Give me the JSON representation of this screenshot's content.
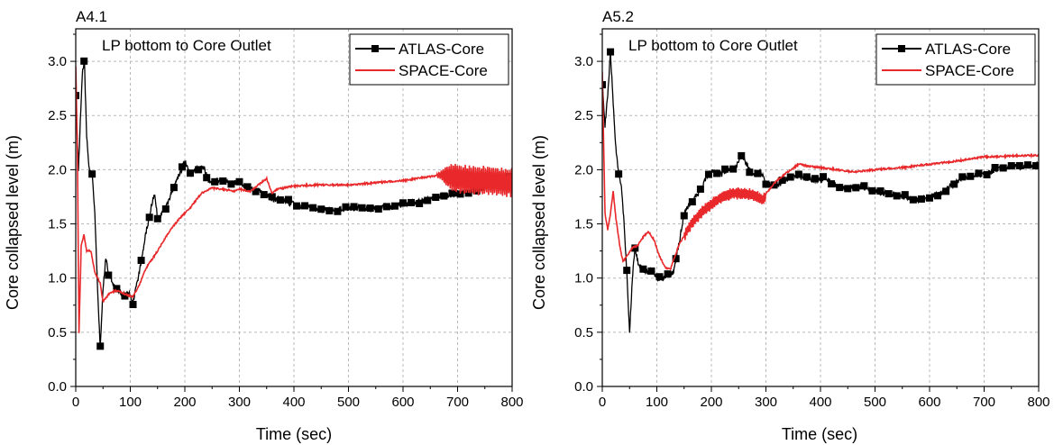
{
  "chart_data": [
    {
      "type": "line",
      "tag": "A4.1",
      "title": "LP bottom to Core Outlet",
      "xlabel": "Time (sec)",
      "ylabel": "Core collapsed level (m)",
      "xlim": [
        0,
        800
      ],
      "ylim": [
        0,
        3.3
      ],
      "x_ticks": [
        "0",
        "100",
        "200",
        "300",
        "400",
        "500",
        "600",
        "700",
        "800"
      ],
      "y_ticks": [
        "0.0",
        "0.5",
        "1.0",
        "1.5",
        "2.0",
        "2.5",
        "3.0"
      ],
      "grid": true,
      "legend_position": "top-right",
      "series": [
        {
          "name": "ATLAS-Core",
          "color": "#000000",
          "marker": "square",
          "points": [
            [
              0,
              2.7
            ],
            [
              5,
              2.0
            ],
            [
              12,
              2.9
            ],
            [
              16,
              3.0
            ],
            [
              20,
              2.3
            ],
            [
              25,
              2.0
            ],
            [
              30,
              1.95
            ],
            [
              35,
              1.6
            ],
            [
              40,
              0.9
            ],
            [
              45,
              0.35
            ],
            [
              50,
              0.9
            ],
            [
              55,
              1.2
            ],
            [
              60,
              1.05
            ],
            [
              65,
              1.0
            ],
            [
              70,
              0.92
            ],
            [
              80,
              0.87
            ],
            [
              90,
              0.85
            ],
            [
              100,
              0.85
            ],
            [
              105,
              0.78
            ],
            [
              110,
              0.9
            ],
            [
              120,
              1.15
            ],
            [
              130,
              1.45
            ],
            [
              140,
              1.7
            ],
            [
              145,
              1.78
            ],
            [
              150,
              1.55
            ],
            [
              160,
              1.6
            ],
            [
              170,
              1.7
            ],
            [
              180,
              1.85
            ],
            [
              190,
              1.95
            ],
            [
              200,
              2.08
            ],
            [
              210,
              1.95
            ],
            [
              220,
              2.0
            ],
            [
              235,
              2.02
            ],
            [
              245,
              1.88
            ],
            [
              260,
              1.9
            ],
            [
              280,
              1.88
            ],
            [
              300,
              1.88
            ],
            [
              320,
              1.82
            ],
            [
              340,
              1.8
            ],
            [
              360,
              1.73
            ],
            [
              380,
              1.72
            ],
            [
              400,
              1.68
            ],
            [
              420,
              1.66
            ],
            [
              450,
              1.63
            ],
            [
              480,
              1.63
            ],
            [
              500,
              1.64
            ],
            [
              520,
              1.65
            ],
            [
              540,
              1.63
            ],
            [
              560,
              1.66
            ],
            [
              580,
              1.65
            ],
            [
              600,
              1.68
            ],
            [
              620,
              1.7
            ],
            [
              640,
              1.71
            ],
            [
              660,
              1.75
            ],
            [
              680,
              1.76
            ],
            [
              700,
              1.78
            ],
            [
              720,
              1.8
            ],
            [
              740,
              1.82
            ],
            [
              760,
              1.85
            ],
            [
              780,
              1.9
            ],
            [
              800,
              1.95
            ]
          ]
        },
        {
          "name": "SPACE-Core",
          "color": "#e8282a",
          "points": [
            [
              0,
              2.95
            ],
            [
              3,
              2.2
            ],
            [
              6,
              0.5
            ],
            [
              10,
              1.3
            ],
            [
              15,
              1.4
            ],
            [
              20,
              1.25
            ],
            [
              28,
              1.25
            ],
            [
              35,
              1.05
            ],
            [
              45,
              0.95
            ],
            [
              50,
              0.78
            ],
            [
              60,
              0.85
            ],
            [
              70,
              0.88
            ],
            [
              80,
              0.88
            ],
            [
              95,
              0.84
            ],
            [
              105,
              0.83
            ],
            [
              115,
              0.92
            ],
            [
              130,
              1.1
            ],
            [
              150,
              1.25
            ],
            [
              170,
              1.42
            ],
            [
              190,
              1.55
            ],
            [
              210,
              1.65
            ],
            [
              230,
              1.78
            ],
            [
              250,
              1.83
            ],
            [
              270,
              1.82
            ],
            [
              290,
              1.8
            ],
            [
              300,
              1.82
            ],
            [
              320,
              1.8
            ],
            [
              340,
              1.88
            ],
            [
              350,
              1.92
            ],
            [
              360,
              1.78
            ],
            [
              370,
              1.82
            ],
            [
              400,
              1.85
            ],
            [
              450,
              1.86
            ],
            [
              500,
              1.86
            ],
            [
              550,
              1.88
            ],
            [
              600,
              1.9
            ],
            [
              640,
              1.93
            ],
            [
              670,
              1.95
            ],
            [
              700,
              1.92
            ],
            [
              730,
              1.9
            ],
            [
              760,
              1.9
            ],
            [
              790,
              1.88
            ],
            [
              800,
              1.88
            ]
          ]
        }
      ]
    },
    {
      "type": "line",
      "tag": "A5.2",
      "title": "LP bottom to Core Outlet",
      "xlabel": "Time (sec)",
      "ylabel": "Core collapsed level (m)",
      "xlim": [
        0,
        800
      ],
      "ylim": [
        0,
        3.3
      ],
      "x_ticks": [
        "0",
        "100",
        "200",
        "300",
        "400",
        "500",
        "600",
        "700",
        "800"
      ],
      "y_ticks": [
        "0.0",
        "0.5",
        "1.0",
        "1.5",
        "2.0",
        "2.5",
        "3.0"
      ],
      "grid": true,
      "legend_position": "top-right",
      "series": [
        {
          "name": "ATLAS-Core",
          "color": "#000000",
          "marker": "square",
          "points": [
            [
              0,
              2.8
            ],
            [
              5,
              2.4
            ],
            [
              10,
              2.7
            ],
            [
              15,
              3.08
            ],
            [
              20,
              2.6
            ],
            [
              25,
              2.2
            ],
            [
              30,
              1.95
            ],
            [
              35,
              1.85
            ],
            [
              40,
              1.5
            ],
            [
              45,
              1.05
            ],
            [
              50,
              0.5
            ],
            [
              55,
              1.0
            ],
            [
              60,
              1.3
            ],
            [
              65,
              1.15
            ],
            [
              70,
              1.1
            ],
            [
              80,
              1.05
            ],
            [
              90,
              1.08
            ],
            [
              100,
              1.0
            ],
            [
              110,
              1.0
            ],
            [
              120,
              1.02
            ],
            [
              130,
              1.05
            ],
            [
              140,
              1.3
            ],
            [
              150,
              1.6
            ],
            [
              160,
              1.68
            ],
            [
              170,
              1.75
            ],
            [
              180,
              1.8
            ],
            [
              190,
              1.92
            ],
            [
              200,
              2.0
            ],
            [
              215,
              1.95
            ],
            [
              230,
              2.0
            ],
            [
              245,
              2.02
            ],
            [
              255,
              2.15
            ],
            [
              265,
              2.05
            ],
            [
              275,
              1.95
            ],
            [
              290,
              1.98
            ],
            [
              300,
              1.88
            ],
            [
              315,
              1.85
            ],
            [
              330,
              1.88
            ],
            [
              350,
              1.95
            ],
            [
              370,
              1.93
            ],
            [
              390,
              1.9
            ],
            [
              410,
              1.92
            ],
            [
              430,
              1.85
            ],
            [
              450,
              1.82
            ],
            [
              470,
              1.85
            ],
            [
              500,
              1.8
            ],
            [
              520,
              1.78
            ],
            [
              550,
              1.75
            ],
            [
              580,
              1.72
            ],
            [
              600,
              1.75
            ],
            [
              620,
              1.78
            ],
            [
              640,
              1.85
            ],
            [
              660,
              1.92
            ],
            [
              680,
              1.95
            ],
            [
              700,
              1.95
            ],
            [
              720,
              2.0
            ],
            [
              740,
              2.02
            ],
            [
              760,
              2.03
            ],
            [
              780,
              2.02
            ],
            [
              800,
              2.05
            ]
          ]
        },
        {
          "name": "SPACE-Core",
          "color": "#e8282a",
          "points": [
            [
              0,
              2.9
            ],
            [
              5,
              1.6
            ],
            [
              10,
              1.45
            ],
            [
              15,
              1.6
            ],
            [
              20,
              1.8
            ],
            [
              25,
              1.55
            ],
            [
              32,
              1.3
            ],
            [
              38,
              1.15
            ],
            [
              45,
              1.2
            ],
            [
              55,
              1.28
            ],
            [
              65,
              1.3
            ],
            [
              75,
              1.38
            ],
            [
              85,
              1.43
            ],
            [
              95,
              1.35
            ],
            [
              105,
              1.2
            ],
            [
              115,
              1.1
            ],
            [
              125,
              1.08
            ],
            [
              140,
              1.3
            ],
            [
              160,
              1.48
            ],
            [
              180,
              1.6
            ],
            [
              200,
              1.68
            ],
            [
              220,
              1.75
            ],
            [
              240,
              1.78
            ],
            [
              260,
              1.78
            ],
            [
              280,
              1.76
            ],
            [
              295,
              1.72
            ],
            [
              300,
              1.78
            ],
            [
              320,
              1.9
            ],
            [
              340,
              1.98
            ],
            [
              360,
              2.05
            ],
            [
              380,
              2.03
            ],
            [
              400,
              2.02
            ],
            [
              430,
              2.0
            ],
            [
              460,
              1.98
            ],
            [
              500,
              2.0
            ],
            [
              550,
              2.02
            ],
            [
              600,
              2.05
            ],
            [
              650,
              2.08
            ],
            [
              700,
              2.12
            ],
            [
              730,
              2.12
            ],
            [
              760,
              2.13
            ],
            [
              800,
              2.13
            ]
          ]
        }
      ]
    }
  ]
}
